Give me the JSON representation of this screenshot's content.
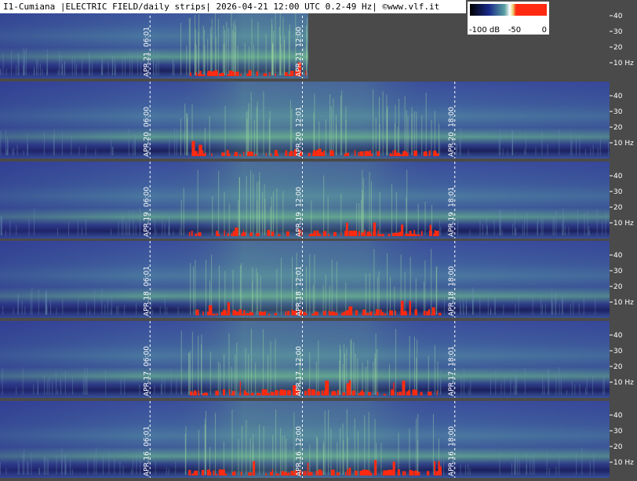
{
  "header": "I1-Cumiana |ELECTRIC FIELD/daily strips| 2026-04-21 12:00 UTC 0.2-49 Hz| ©www.vlf.it",
  "colorbar": {
    "labels": [
      "-100 dB",
      "-50",
      "0"
    ]
  },
  "axis_labels": [
    "40",
    "30",
    "20",
    "10 Hz"
  ],
  "strips": [
    {
      "date": "APR.21",
      "times": [
        "06:01",
        "12:00"
      ]
    },
    {
      "date": "APR.20",
      "times": [
        "06:00",
        "12:01",
        "18:00"
      ]
    },
    {
      "date": "APR.19",
      "times": [
        "06:00",
        "12:00",
        "18:01"
      ]
    },
    {
      "date": "APR.18",
      "times": [
        "06:01",
        "12:01",
        "18:00"
      ]
    },
    {
      "date": "APR.17",
      "times": [
        "06:00",
        "12:00",
        "18:01"
      ]
    },
    {
      "date": "APR.16",
      "times": [
        "06:01",
        "12:00",
        "18:00"
      ]
    }
  ]
}
